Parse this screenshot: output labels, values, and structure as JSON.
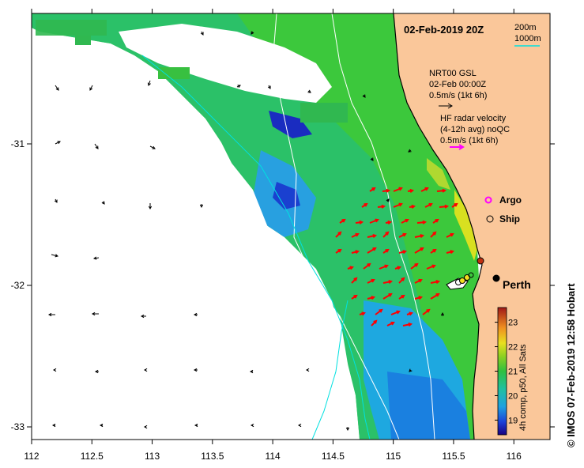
{
  "title": "02-Feb-2019 20Z",
  "isobaths": [
    "200m",
    "1000m"
  ],
  "isobath_colors": [
    "#ffffff",
    "#00e0e0"
  ],
  "legend": {
    "gsl_line1": "NRT00 GSL",
    "gsl_line2": "02-Feb 00:00Z",
    "gsl_scale": "0.5m/s (1kt 6h)",
    "hf_line1": "HF radar velocity",
    "hf_line2": "(4-12h avg) noQC",
    "hf_scale": "0.5m/s (1kt 6h)",
    "argo": "Argo",
    "ship": "Ship"
  },
  "city": "Perth",
  "credit": "© IMOS 07-Feb-2019 12:58 Hobart",
  "colorbar": {
    "label": "4h comp, p50, All Sats",
    "ticks": [
      "19",
      "20",
      "21",
      "22",
      "23"
    ],
    "min": 18.4,
    "max": 23.6
  },
  "axes": {
    "x_ticks": [
      "112",
      "112.5",
      "113",
      "113.5",
      "114",
      "114.5",
      "115",
      "115.5",
      "116"
    ],
    "y_ticks": [
      "-31",
      "-32",
      "-33"
    ]
  },
  "colors": {
    "land": "#fac79a",
    "gsl_arrow": "#000000",
    "hf_arrow": "#ff0000",
    "hf_legend": "#ff00ff",
    "argo": "#ff00ff"
  }
}
